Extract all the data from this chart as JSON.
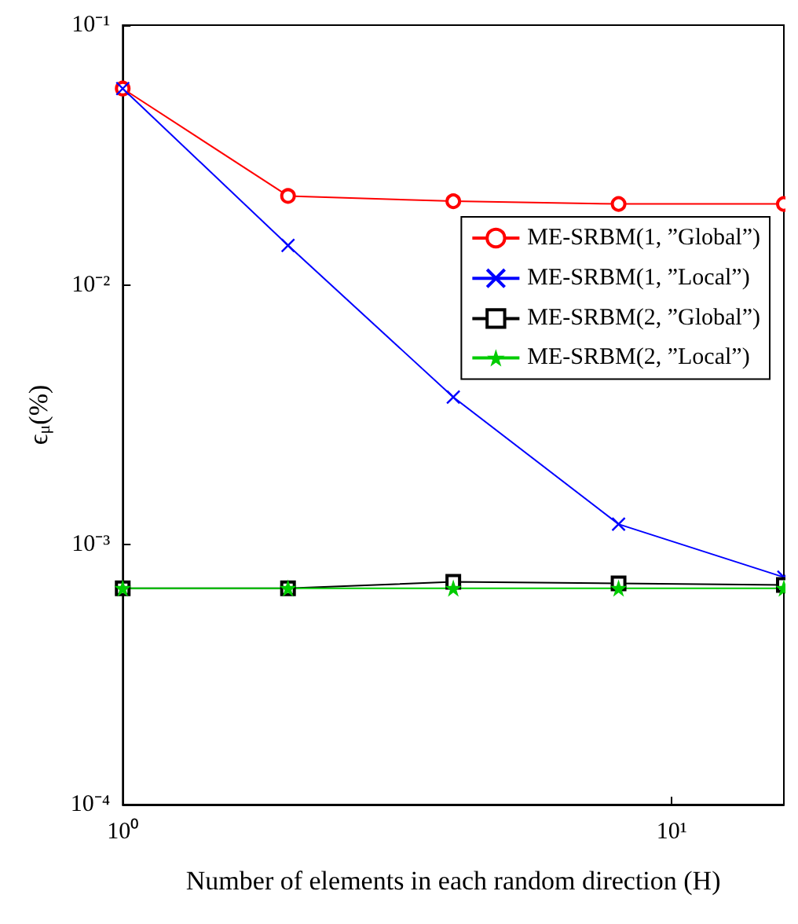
{
  "chart_data": {
    "type": "line",
    "xlabel": "Number of elements in each random direction (H)",
    "ylabel": "ϵ$_{μ}$(%)",
    "log": "xy",
    "x": [
      1,
      2,
      4,
      8,
      16
    ],
    "xlim": [
      1,
      16
    ],
    "xticks": [
      {
        "value": 1,
        "label": "10⁰"
      },
      {
        "value": 10,
        "label": "10¹"
      }
    ],
    "ylim": [
      0.0001,
      0.1
    ],
    "yticks": [
      {
        "value": 0.0001,
        "label": "10⁻⁴"
      },
      {
        "value": 0.001,
        "label": "10⁻³"
      },
      {
        "value": 0.01,
        "label": "10⁻²"
      },
      {
        "value": 0.1,
        "label": "10⁻¹"
      }
    ],
    "legend": "right",
    "series": [
      {
        "name": "ME-SRBM(1, ”Global”)",
        "color": "#ff0000",
        "marker": "circle",
        "values": [
          0.057,
          0.022,
          0.021,
          0.0205,
          0.0205
        ]
      },
      {
        "name": "ME-SRBM(1, ”Local”)",
        "color": "#0000ff",
        "marker": "cross",
        "values": [
          0.057,
          0.0142,
          0.0037,
          0.0012,
          0.00075
        ]
      },
      {
        "name": "ME-SRBM(2, ”Global”)",
        "color": "#000000",
        "marker": "square",
        "values": [
          0.00068,
          0.00068,
          0.00072,
          0.00071,
          0.0007
        ]
      },
      {
        "name": "ME-SRBM(2, ”Local”)",
        "color": "#00cc00",
        "marker": "star",
        "values": [
          0.00068,
          0.00068,
          0.00068,
          0.00068,
          0.00068
        ]
      }
    ]
  }
}
